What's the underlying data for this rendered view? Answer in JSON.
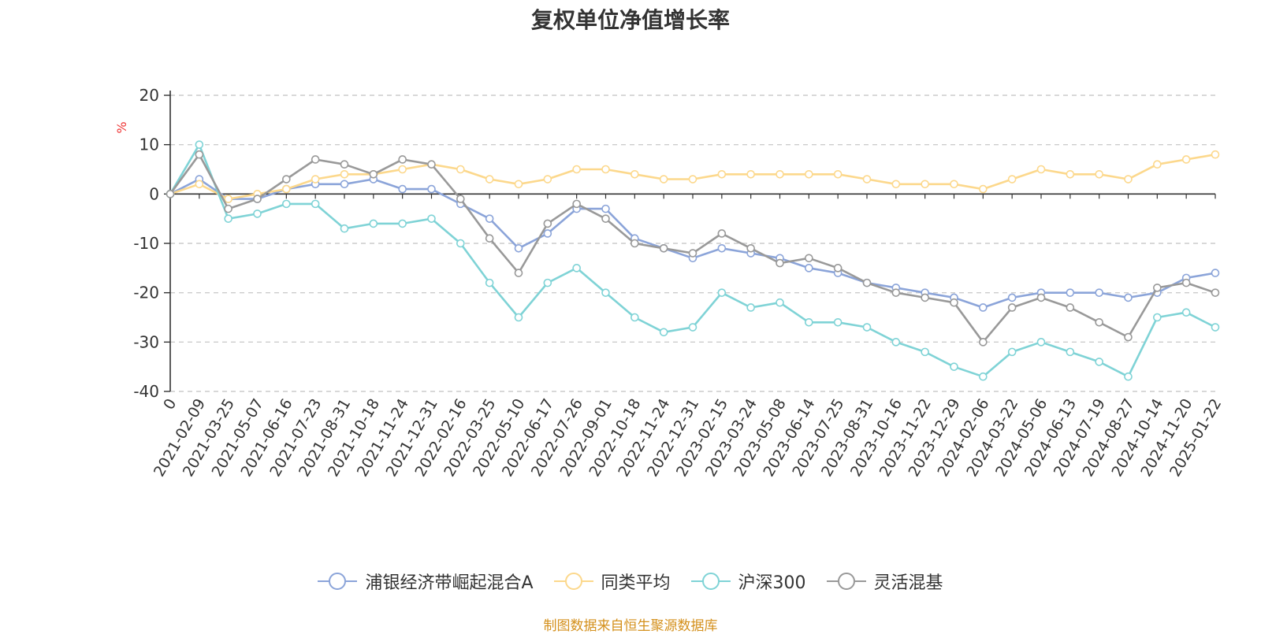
{
  "chart_data": {
    "type": "line",
    "title": "复权单位净值增长率",
    "ylabel": "%",
    "ylim": [
      -40,
      20
    ],
    "yticks": [
      20,
      10,
      0,
      -10,
      -20,
      -30,
      -40
    ],
    "grid": true,
    "legend_position": "bottom",
    "x": [
      "0",
      "2021-02-09",
      "2021-03-25",
      "2021-05-07",
      "2021-06-16",
      "2021-07-23",
      "2021-08-31",
      "2021-10-18",
      "2021-11-24",
      "2021-12-31",
      "2022-02-16",
      "2022-03-25",
      "2022-05-10",
      "2022-06-17",
      "2022-07-26",
      "2022-09-01",
      "2022-10-18",
      "2022-11-24",
      "2022-12-31",
      "2023-02-15",
      "2023-03-24",
      "2023-05-08",
      "2023-06-14",
      "2023-07-25",
      "2023-08-31",
      "2023-10-16",
      "2023-11-22",
      "2023-12-29",
      "2024-02-06",
      "2024-03-22",
      "2024-05-06",
      "2024-06-13",
      "2024-07-19",
      "2024-08-27",
      "2024-10-14",
      "2024-11-20",
      "2025-01-22"
    ],
    "series": [
      {
        "name": "浦银经济带崛起混合A",
        "color": "#8ba4d9",
        "values": [
          0,
          3,
          -1,
          -1,
          1,
          2,
          2,
          3,
          1,
          1,
          -2,
          -5,
          -11,
          -8,
          -3,
          -3,
          -9,
          -11,
          -13,
          -11,
          -12,
          -13,
          -15,
          -16,
          -18,
          -19,
          -20,
          -21,
          -23,
          -21,
          -20,
          -20,
          -20,
          -21,
          -20,
          -17,
          -16
        ]
      },
      {
        "name": "同类平均",
        "color": "#fcd88c",
        "values": [
          0,
          2,
          -1,
          0,
          1,
          3,
          4,
          4,
          5,
          6,
          5,
          3,
          2,
          3,
          5,
          5,
          4,
          3,
          3,
          4,
          4,
          4,
          4,
          4,
          3,
          2,
          2,
          2,
          1,
          3,
          5,
          4,
          4,
          3,
          6,
          7,
          8
        ]
      },
      {
        "name": "沪深300",
        "color": "#7fd3d6",
        "values": [
          0,
          10,
          -5,
          -4,
          -2,
          -2,
          -7,
          -6,
          -6,
          -5,
          -10,
          -18,
          -25,
          -18,
          -15,
          -20,
          -25,
          -28,
          -27,
          -20,
          -23,
          -22,
          -26,
          -26,
          -27,
          -30,
          -32,
          -35,
          -37,
          -32,
          -30,
          -32,
          -34,
          -37,
          -25,
          -24,
          -27
        ]
      },
      {
        "name": "灵活混基",
        "color": "#999999",
        "values": [
          0,
          8,
          -3,
          -1,
          3,
          7,
          6,
          4,
          7,
          6,
          -1,
          -9,
          -16,
          -6,
          -2,
          -5,
          -10,
          -11,
          -12,
          -8,
          -11,
          -14,
          -13,
          -15,
          -18,
          -20,
          -21,
          -22,
          -30,
          -23,
          -21,
          -23,
          -26,
          -29,
          -19,
          -18,
          -20
        ]
      }
    ]
  },
  "footer_text": "制图数据来自恒生聚源数据库"
}
